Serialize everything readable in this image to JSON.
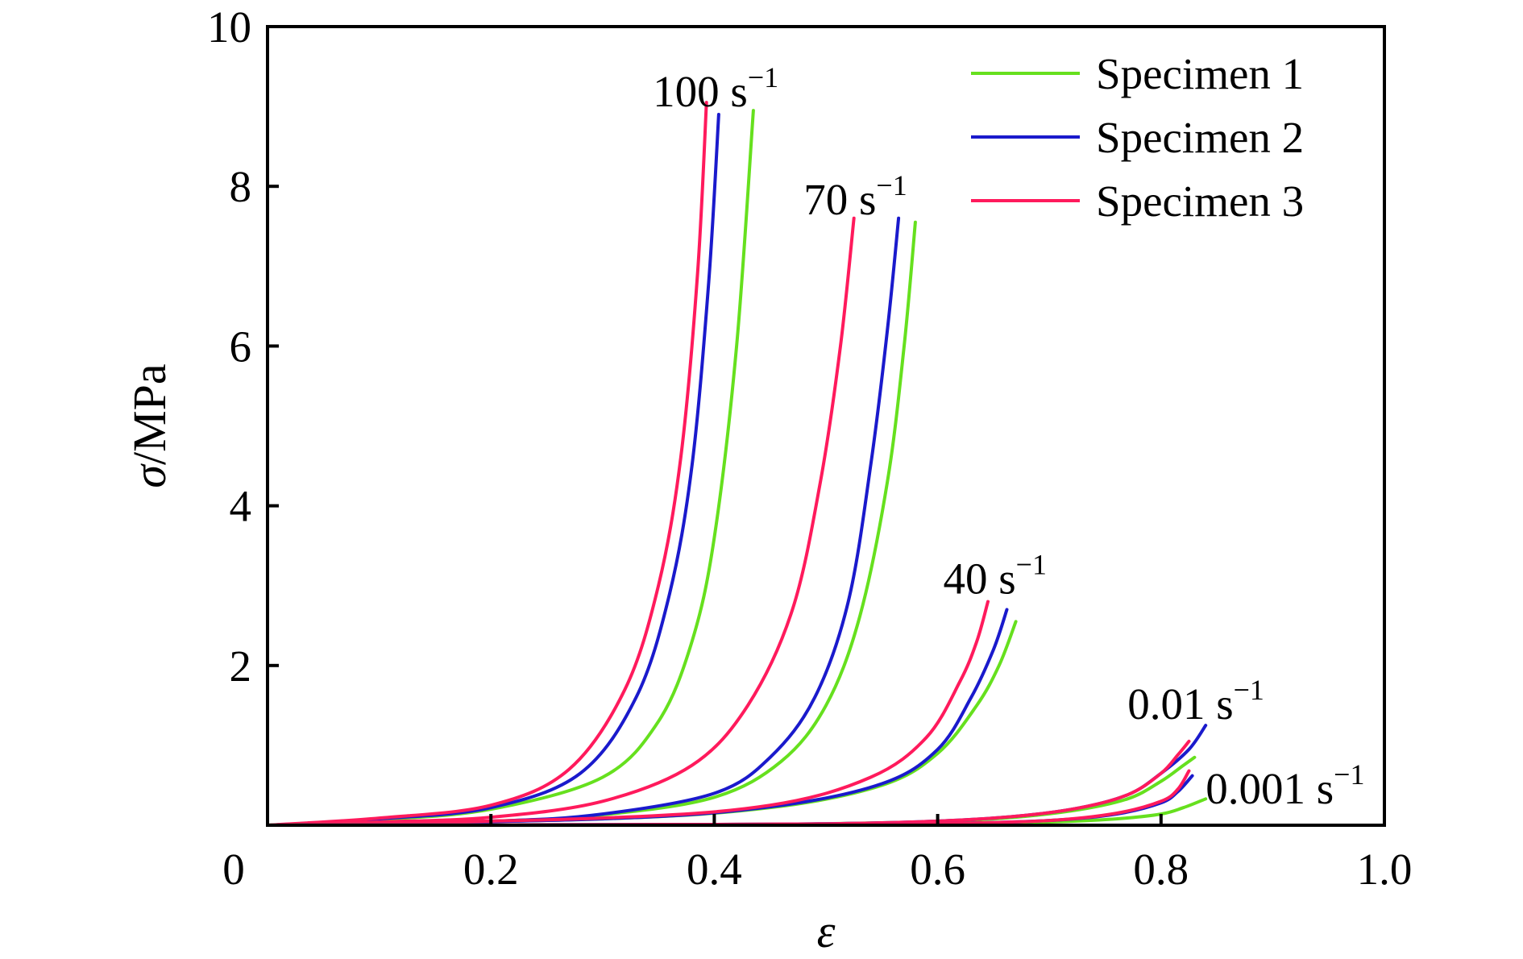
{
  "chart_data": {
    "type": "line",
    "title": "",
    "xlabel": "ε",
    "ylabel": "σ/MPa",
    "xlim": [
      0,
      1.0
    ],
    "ylim": [
      0,
      10
    ],
    "x_ticks": [
      "0",
      "0.2",
      "0.4",
      "0.6",
      "0.8",
      "1.0"
    ],
    "y_ticks": [
      "2",
      "4",
      "6",
      "8",
      "10"
    ],
    "grid": false,
    "legend_position": "top-right",
    "legend": [
      {
        "name": "Specimen 1",
        "color": "#66e01e"
      },
      {
        "name": "Specimen 2",
        "color": "#1a1acc"
      },
      {
        "name": "Specimen 3",
        "color": "#ff1a5c"
      }
    ],
    "rate_labels": [
      {
        "text": "100 s",
        "sup": "−1",
        "x": 0.345,
        "y": 9.0
      },
      {
        "text": "70 s",
        "sup": "−1",
        "x": 0.48,
        "y": 7.65
      },
      {
        "text": "40 s",
        "sup": "−1",
        "x": 0.605,
        "y": 2.9
      },
      {
        "text": "0.01 s",
        "sup": "−1",
        "x": 0.77,
        "y": 1.33
      },
      {
        "text": "0.001 s",
        "sup": "−1",
        "x": 0.84,
        "y": 0.27
      }
    ],
    "series": [
      {
        "name": "Specimen 1",
        "rate": "100 s−1",
        "x": [
          0,
          0.1,
          0.2,
          0.3,
          0.35,
          0.38,
          0.4,
          0.42,
          0.435
        ],
        "y": [
          0,
          0.07,
          0.2,
          0.6,
          1.3,
          2.3,
          3.6,
          6.0,
          8.95
        ]
      },
      {
        "name": "Specimen 2",
        "rate": "100 s−1",
        "x": [
          0,
          0.1,
          0.2,
          0.28,
          0.33,
          0.36,
          0.38,
          0.395,
          0.404
        ],
        "y": [
          0,
          0.08,
          0.22,
          0.65,
          1.6,
          2.9,
          4.5,
          6.8,
          8.9
        ]
      },
      {
        "name": "Specimen 3",
        "rate": "100 s−1",
        "x": [
          0,
          0.1,
          0.2,
          0.27,
          0.32,
          0.35,
          0.37,
          0.385,
          0.393
        ],
        "y": [
          0,
          0.09,
          0.25,
          0.7,
          1.7,
          3.0,
          4.6,
          6.9,
          9.05
        ]
      },
      {
        "name": "Specimen 1",
        "rate": "70 s−1",
        "x": [
          0,
          0.2,
          0.3,
          0.4,
          0.46,
          0.5,
          0.53,
          0.555,
          0.57,
          0.58
        ],
        "y": [
          0,
          0.05,
          0.13,
          0.35,
          0.8,
          1.5,
          2.6,
          4.3,
          6.0,
          7.55
        ]
      },
      {
        "name": "Specimen 2",
        "rate": "70 s−1",
        "x": [
          0,
          0.2,
          0.3,
          0.4,
          0.45,
          0.49,
          0.52,
          0.54,
          0.555,
          0.565
        ],
        "y": [
          0,
          0.05,
          0.14,
          0.4,
          0.85,
          1.6,
          2.8,
          4.5,
          6.2,
          7.6
        ]
      },
      {
        "name": "Specimen 3",
        "rate": "70 s−1",
        "x": [
          0,
          0.1,
          0.2,
          0.3,
          0.38,
          0.43,
          0.47,
          0.495,
          0.513,
          0.525
        ],
        "y": [
          0,
          0.04,
          0.1,
          0.3,
          0.75,
          1.5,
          2.7,
          4.3,
          6.0,
          7.6
        ]
      },
      {
        "name": "Specimen 1",
        "rate": "40 s−1",
        "x": [
          0,
          0.3,
          0.45,
          0.55,
          0.6,
          0.635,
          0.655,
          0.67
        ],
        "y": [
          0,
          0.08,
          0.22,
          0.5,
          0.9,
          1.5,
          2.0,
          2.55
        ]
      },
      {
        "name": "Specimen 2",
        "rate": "40 s−1",
        "x": [
          0,
          0.3,
          0.45,
          0.55,
          0.6,
          0.63,
          0.65,
          0.662
        ],
        "y": [
          0,
          0.08,
          0.23,
          0.52,
          0.95,
          1.6,
          2.2,
          2.7
        ]
      },
      {
        "name": "Specimen 3",
        "rate": "40 s−1",
        "x": [
          0,
          0.3,
          0.45,
          0.54,
          0.59,
          0.62,
          0.635,
          0.645
        ],
        "y": [
          0,
          0.09,
          0.25,
          0.6,
          1.1,
          1.8,
          2.3,
          2.8
        ]
      },
      {
        "name": "Specimen 1",
        "rate": "0.01 s−1",
        "x": [
          0,
          0.4,
          0.55,
          0.65,
          0.72,
          0.77,
          0.8,
          0.82,
          0.83
        ],
        "y": [
          0,
          0.01,
          0.03,
          0.08,
          0.18,
          0.33,
          0.55,
          0.75,
          0.85
        ]
      },
      {
        "name": "Specimen 2",
        "rate": "0.01 s−1",
        "x": [
          0,
          0.4,
          0.55,
          0.65,
          0.72,
          0.77,
          0.8,
          0.825,
          0.84
        ],
        "y": [
          0,
          0.01,
          0.03,
          0.09,
          0.2,
          0.38,
          0.65,
          0.95,
          1.25
        ]
      },
      {
        "name": "Specimen 3",
        "rate": "0.01 s−1",
        "x": [
          0,
          0.4,
          0.55,
          0.65,
          0.72,
          0.77,
          0.8,
          0.815,
          0.825
        ],
        "y": [
          0,
          0.01,
          0.03,
          0.09,
          0.2,
          0.38,
          0.65,
          0.88,
          1.05
        ]
      },
      {
        "name": "Specimen 1",
        "rate": "0.001 s−1",
        "x": [
          0,
          0.4,
          0.6,
          0.7,
          0.76,
          0.8,
          0.82,
          0.84
        ],
        "y": [
          0,
          0.005,
          0.015,
          0.04,
          0.08,
          0.14,
          0.22,
          0.33
        ]
      },
      {
        "name": "Specimen 2",
        "rate": "0.001 s−1",
        "x": [
          0,
          0.4,
          0.6,
          0.7,
          0.76,
          0.8,
          0.815,
          0.828
        ],
        "y": [
          0,
          0.006,
          0.02,
          0.06,
          0.14,
          0.28,
          0.42,
          0.62
        ]
      },
      {
        "name": "Specimen 3",
        "rate": "0.001 s−1",
        "x": [
          0,
          0.4,
          0.6,
          0.7,
          0.76,
          0.8,
          0.815,
          0.825
        ],
        "y": [
          0,
          0.006,
          0.02,
          0.06,
          0.15,
          0.3,
          0.45,
          0.68
        ]
      }
    ]
  }
}
